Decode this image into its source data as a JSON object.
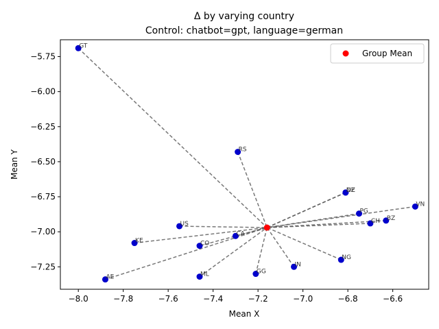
{
  "chart_data": {
    "type": "scatter",
    "title": "Δ by varying country",
    "subtitle": "Control: chatbot=gpt, language=german",
    "xlabel": "Mean X",
    "ylabel": "Mean Y",
    "xlim": [
      -8.08,
      -6.44
    ],
    "ylim": [
      -7.41,
      -5.63
    ],
    "x_ticks": [
      -8.0,
      -7.8,
      -7.6,
      -7.4,
      -7.2,
      -7.0,
      -6.8,
      -6.6
    ],
    "x_tick_labels": [
      "−8.0",
      "−7.8",
      "−7.6",
      "−7.4",
      "−7.2",
      "−7.0",
      "−6.8",
      "−6.6"
    ],
    "y_ticks": [
      -5.75,
      -6.0,
      -6.25,
      -6.5,
      -6.75,
      -7.0,
      -7.25
    ],
    "y_tick_labels": [
      "−5.75",
      "−6.00",
      "−6.25",
      "−6.50",
      "−6.75",
      "−7.00",
      "−7.25"
    ],
    "grid": false,
    "legend": {
      "placement": "top-right",
      "entries": [
        "Group Mean"
      ]
    },
    "group_mean": {
      "name": "Group Mean",
      "x": -7.16,
      "y": -6.97,
      "color": "#ff0000"
    },
    "point_color": "#0000cc",
    "line_color": "#555555",
    "points": [
      {
        "label": "GT",
        "x": -8.0,
        "y": -5.69
      },
      {
        "label": "RS",
        "x": -7.29,
        "y": -6.43
      },
      {
        "label": "NZ",
        "x": -6.81,
        "y": -6.72
      },
      {
        "label": "DE",
        "x": -6.81,
        "y": -6.72
      },
      {
        "label": "VN",
        "x": -6.5,
        "y": -6.82
      },
      {
        "label": "PG",
        "x": -6.75,
        "y": -6.87
      },
      {
        "label": "BZ",
        "x": -6.63,
        "y": -6.92
      },
      {
        "label": "CH",
        "x": -6.7,
        "y": -6.94
      },
      {
        "label": "US",
        "x": -7.55,
        "y": -6.96
      },
      {
        "label": "CA",
        "x": -7.3,
        "y": -7.03
      },
      {
        "label": "KE",
        "x": -7.75,
        "y": -7.08
      },
      {
        "label": "CO",
        "x": -7.46,
        "y": -7.1
      },
      {
        "label": "NG",
        "x": -6.83,
        "y": -7.2
      },
      {
        "label": "IN",
        "x": -7.04,
        "y": -7.25
      },
      {
        "label": "GG",
        "x": -7.21,
        "y": -7.3
      },
      {
        "label": "ML",
        "x": -7.46,
        "y": -7.32
      },
      {
        "label": "AE",
        "x": -7.88,
        "y": -7.34
      }
    ]
  }
}
